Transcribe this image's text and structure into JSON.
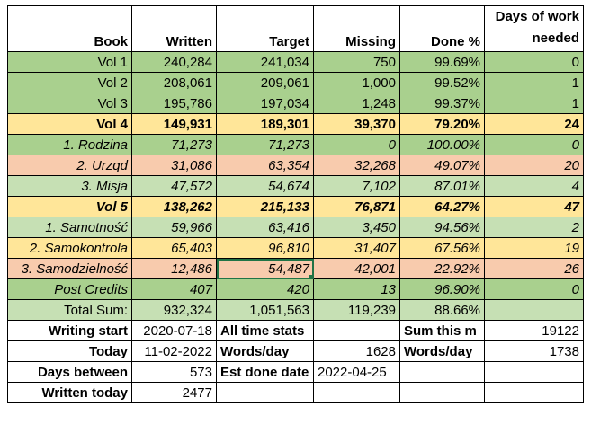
{
  "header": {
    "book": "Book",
    "written": "Written",
    "target": "Target",
    "missing": "Missing",
    "done": "Done %",
    "days_line1": "Days of work",
    "days_line2": "needed"
  },
  "rows": [
    {
      "book": "Vol 1",
      "written": "240,284",
      "target": "241,034",
      "missing": "750",
      "done": "99.69%",
      "days": "0"
    },
    {
      "book": "Vol 2",
      "written": "208,061",
      "target": "209,061",
      "missing": "1,000",
      "done": "99.52%",
      "days": "1"
    },
    {
      "book": "Vol 3",
      "written": "195,786",
      "target": "197,034",
      "missing": "1,248",
      "done": "99.37%",
      "days": "1"
    },
    {
      "book": "Vol 4",
      "written": "149,931",
      "target": "189,301",
      "missing": "39,370",
      "done": "79.20%",
      "days": "24"
    },
    {
      "book": "1. Rodzina",
      "written": "71,273",
      "target": "71,273",
      "missing": "0",
      "done": "100.00%",
      "days": "0"
    },
    {
      "book": "2. Urzqd",
      "written": "31,086",
      "target": "63,354",
      "missing": "32,268",
      "done": "49.07%",
      "days": "20"
    },
    {
      "book": "3. Misja",
      "written": "47,572",
      "target": "54,674",
      "missing": "7,102",
      "done": "87.01%",
      "days": "4"
    },
    {
      "book": "Vol 5",
      "written": "138,262",
      "target": "215,133",
      "missing": "76,871",
      "done": "64.27%",
      "days": "47"
    },
    {
      "book": "1. Samotność",
      "written": "59,966",
      "target": "63,416",
      "missing": "3,450",
      "done": "94.56%",
      "days": "2"
    },
    {
      "book": "2. Samokontrola",
      "written": "65,403",
      "target": "96,810",
      "missing": "31,407",
      "done": "67.56%",
      "days": "19"
    },
    {
      "book": "3. Samodzielność",
      "written": "12,486",
      "target": "54,487",
      "missing": "42,001",
      "done": "22.92%",
      "days": "26"
    },
    {
      "book": "Post Credits",
      "written": "407",
      "target": "420",
      "missing": "13",
      "done": "96.90%",
      "days": "0"
    },
    {
      "book": "Total Sum:",
      "written": "932,324",
      "target": "1,051,563",
      "missing": "119,239",
      "done": "88.66%",
      "days": ""
    }
  ],
  "stats": {
    "writing_start_label": "Writing start",
    "writing_start_value": "2020-07-18",
    "all_time_stats_label": "All time stats",
    "sum_this_m_label": "Sum this m",
    "sum_this_m_value": "19122",
    "today_label": "Today",
    "today_value": "11-02-2022",
    "words_day_label": "Words/day",
    "words_day_value": "1628",
    "words_day2_label": "Words/day",
    "words_day2_value": "1738",
    "days_between_label": "Days between",
    "days_between_value": "573",
    "est_done_label": "Est done date",
    "est_done_value": "2022-04-25",
    "written_today_label": "Written today",
    "written_today_value": "2477"
  },
  "colors": {
    "green": "#a9d08e",
    "light_green": "#c6e0b4",
    "yellow": "#ffe699",
    "orange": "#f8cbad",
    "selection": "#217346"
  }
}
